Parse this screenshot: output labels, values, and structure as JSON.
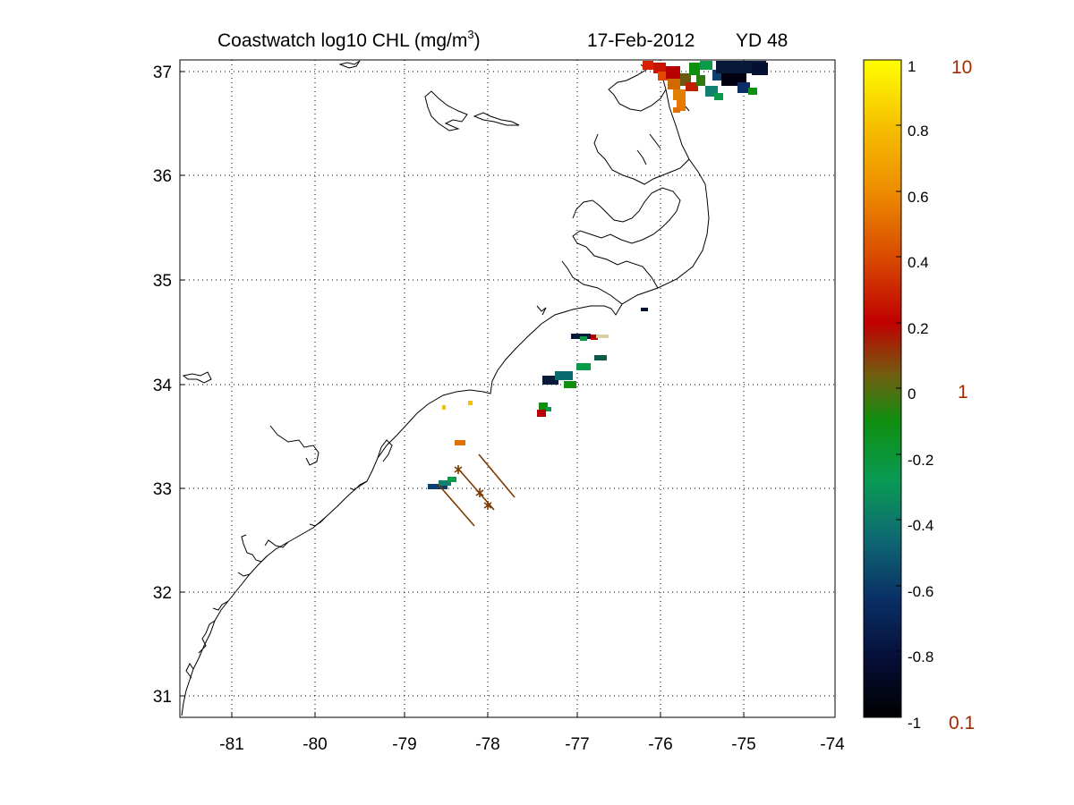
{
  "title": {
    "prefix": "Coastwatch  log10  CHL (mg/m",
    "superscript": "3",
    "suffix": ")",
    "date": "17-Feb-2012",
    "yearday": "YD 48"
  },
  "map": {
    "lon_range": [
      -81.6,
      -74
    ],
    "lat_range": [
      30.8,
      37.15
    ],
    "x_ticks": [
      "-81",
      "-80",
      "-79",
      "-78",
      "-77",
      "-76",
      "-75",
      "-74"
    ],
    "y_ticks": [
      "37",
      "36",
      "35",
      "34",
      "33",
      "32",
      "31"
    ],
    "grid": "dotted",
    "coastline_color": "#000000"
  },
  "colorbar": {
    "range": [
      -1,
      1
    ],
    "ticks": [
      "1",
      "0.8",
      "0.6",
      "0.4",
      "0.2",
      "0",
      "-0.2",
      "-0.4",
      "-0.6",
      "-0.8",
      "-1"
    ],
    "secondary_labels": [
      "10",
      "1",
      "0.1"
    ],
    "secondary_label_color": "#a52a00",
    "colormap": [
      "#000000",
      "#071a5a",
      "#0a3f70",
      "#11806e",
      "#0a9a4a",
      "#0e8f0e",
      "#6e6a10",
      "#b80000",
      "#d63a00",
      "#ef8a00",
      "#f6c000",
      "#ffff00"
    ]
  },
  "glider_tracks_color": "#7a3a00"
}
